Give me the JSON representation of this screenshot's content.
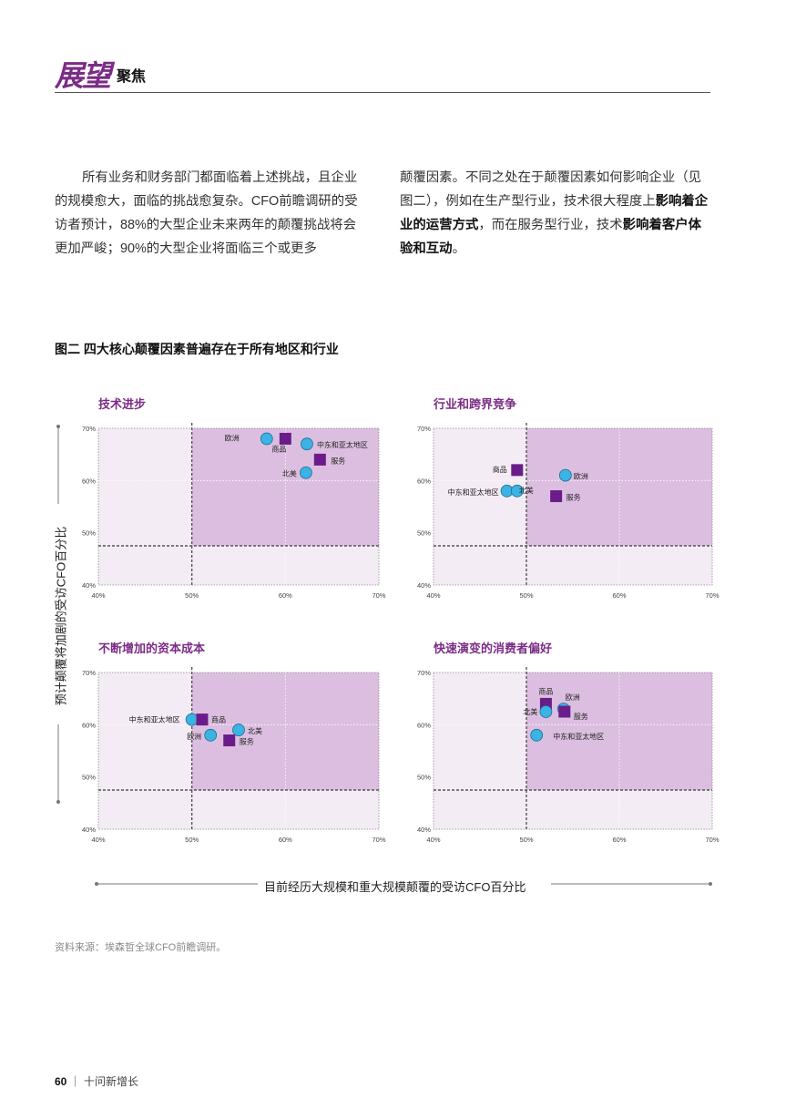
{
  "header": {
    "logo_text": "展望",
    "section": "聚焦"
  },
  "body_text": {
    "left_para": "所有业务和财务部门都面临着上述挑战，且企业的规模愈大，面临的挑战愈复杂。CFO前瞻调研的受访者预计，88%的大型企业未来两年的颠覆挑战将会更加严峻；90%的大型企业将面临三个或更多",
    "right_a": "颠覆因素。不同之处在于颠覆因素如何影响企业（见图二），例如在生产型行业，技术很大程度上",
    "right_b": "影响着企业的运营方式",
    "right_c": "，而在服务型行业，技术",
    "right_d": "影响着客户体验和互动",
    "right_e": "。"
  },
  "figure": {
    "title": "图二  四大核心颠覆因素普遍存在于所有地区和行业",
    "y_axis_label": "预计颠覆将加剧的受访CFO百分比",
    "x_axis_label": "目前经历大规模和重大规模颠覆的受访CFO百分比"
  },
  "source": "资料来源：埃森哲全球CFO前瞻调研。",
  "footer": {
    "page": "60",
    "title": "十问新增长"
  },
  "colors": {
    "circle_fill": "#3bb3e4",
    "square_fill": "#6a1d8a",
    "quad_dark": "#dcbfe0",
    "quad_light": "#f4ecf5",
    "accent": "#7b2c86"
  },
  "chart_data": [
    {
      "type": "scatter",
      "title": "技术进步",
      "x_ticks": [
        "40%",
        "50%",
        "60%",
        "70%"
      ],
      "y_ticks": [
        "40%",
        "50%",
        "60%",
        "70%"
      ],
      "xlim": [
        40,
        70
      ],
      "ylim": [
        40,
        70
      ],
      "points": [
        {
          "label": "欧洲",
          "x": 58,
          "y": 68,
          "shape": "circle"
        },
        {
          "label": "商品",
          "x": 60,
          "y": 68,
          "shape": "square"
        },
        {
          "label": "中东和亚太地区",
          "x": 62.3,
          "y": 67,
          "shape": "circle"
        },
        {
          "label": "服务",
          "x": 63.7,
          "y": 64,
          "shape": "square"
        },
        {
          "label": "北美",
          "x": 62.2,
          "y": 61.5,
          "shape": "circle"
        }
      ]
    },
    {
      "type": "scatter",
      "title": "行业和跨界竞争",
      "x_ticks": [
        "40%",
        "50%",
        "60%",
        "70%"
      ],
      "y_ticks": [
        "40%",
        "50%",
        "60%",
        "70%"
      ],
      "xlim": [
        40,
        70
      ],
      "ylim": [
        40,
        70
      ],
      "points": [
        {
          "label": "商品",
          "x": 49,
          "y": 62,
          "shape": "square"
        },
        {
          "label": "欧洲",
          "x": 54.2,
          "y": 61,
          "shape": "circle"
        },
        {
          "label": "中东和亚太地区",
          "x": 47.9,
          "y": 58,
          "shape": "circle"
        },
        {
          "label": "北美",
          "x": 49,
          "y": 58,
          "shape": "circle"
        },
        {
          "label": "服务",
          "x": 53.2,
          "y": 57,
          "shape": "square"
        }
      ]
    },
    {
      "type": "scatter",
      "title": "不断增加的资本成本",
      "x_ticks": [
        "40%",
        "50%",
        "60%",
        "70%"
      ],
      "y_ticks": [
        "40%",
        "50%",
        "60%",
        "70%"
      ],
      "xlim": [
        40,
        70
      ],
      "ylim": [
        40,
        70
      ],
      "points": [
        {
          "label": "中东和亚太地区",
          "x": 50,
          "y": 61,
          "shape": "circle"
        },
        {
          "label": "商品",
          "x": 51.1,
          "y": 61,
          "shape": "square"
        },
        {
          "label": "欧洲",
          "x": 52,
          "y": 58,
          "shape": "circle"
        },
        {
          "label": "北美",
          "x": 55,
          "y": 59,
          "shape": "circle"
        },
        {
          "label": "服务",
          "x": 54,
          "y": 57,
          "shape": "square"
        }
      ]
    },
    {
      "type": "scatter",
      "title": "快速演变的消费者偏好",
      "x_ticks": [
        "40%",
        "50%",
        "60%",
        "70%"
      ],
      "y_ticks": [
        "40%",
        "50%",
        "60%",
        "70%"
      ],
      "xlim": [
        40,
        70
      ],
      "ylim": [
        40,
        70
      ],
      "points": [
        {
          "label": "商品",
          "x": 52.1,
          "y": 64,
          "shape": "square"
        },
        {
          "label": "欧洲",
          "x": 54,
          "y": 63,
          "shape": "circle"
        },
        {
          "label": "北美",
          "x": 52.1,
          "y": 62.5,
          "shape": "circle"
        },
        {
          "label": "服务",
          "x": 54.1,
          "y": 62.5,
          "shape": "square"
        },
        {
          "label": "中东和亚太地区",
          "x": 51.1,
          "y": 58,
          "shape": "circle"
        }
      ]
    }
  ]
}
